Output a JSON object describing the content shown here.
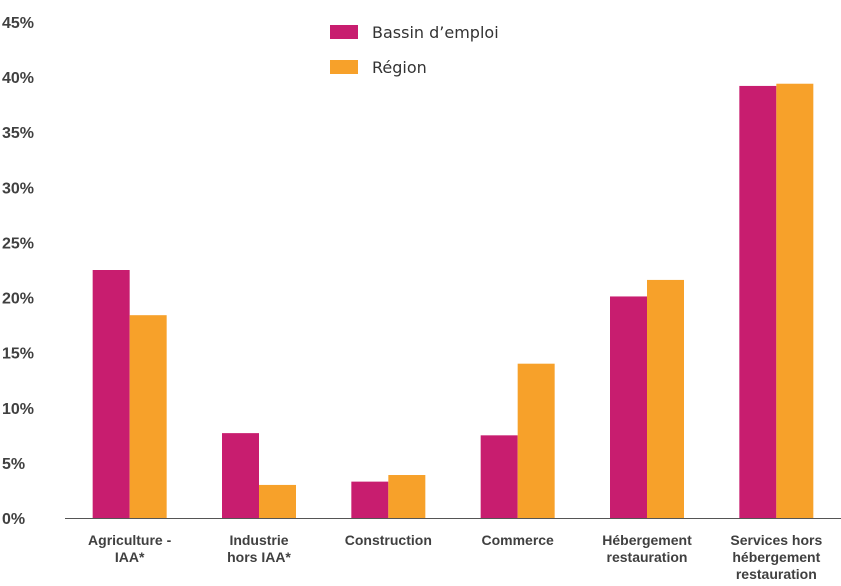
{
  "chart_data": {
    "type": "bar",
    "categories": [
      [
        "Agriculture -",
        "IAA*"
      ],
      [
        "Industrie",
        "hors IAA*"
      ],
      [
        "Construction"
      ],
      [
        "Commerce"
      ],
      [
        "Hébergement",
        "restauration"
      ],
      [
        "Services hors",
        "hébergement",
        "restauration"
      ]
    ],
    "series": [
      {
        "name": "Bassin d’emploi",
        "color": "#c81d6f",
        "values": [
          22.5,
          7.7,
          3.3,
          7.5,
          20.1,
          39.2
        ]
      },
      {
        "name": "Région",
        "color": "#f7a12a",
        "values": [
          18.4,
          3.0,
          3.9,
          14.0,
          21.6,
          39.4
        ]
      }
    ],
    "yticks": [
      "0%",
      "5%",
      "10%",
      "15%",
      "20%",
      "25%",
      "30%",
      "35%",
      "40%",
      "45%"
    ],
    "ylim": [
      0,
      45
    ],
    "grid": false,
    "legend": "top-center",
    "axis_color": "#555555"
  }
}
